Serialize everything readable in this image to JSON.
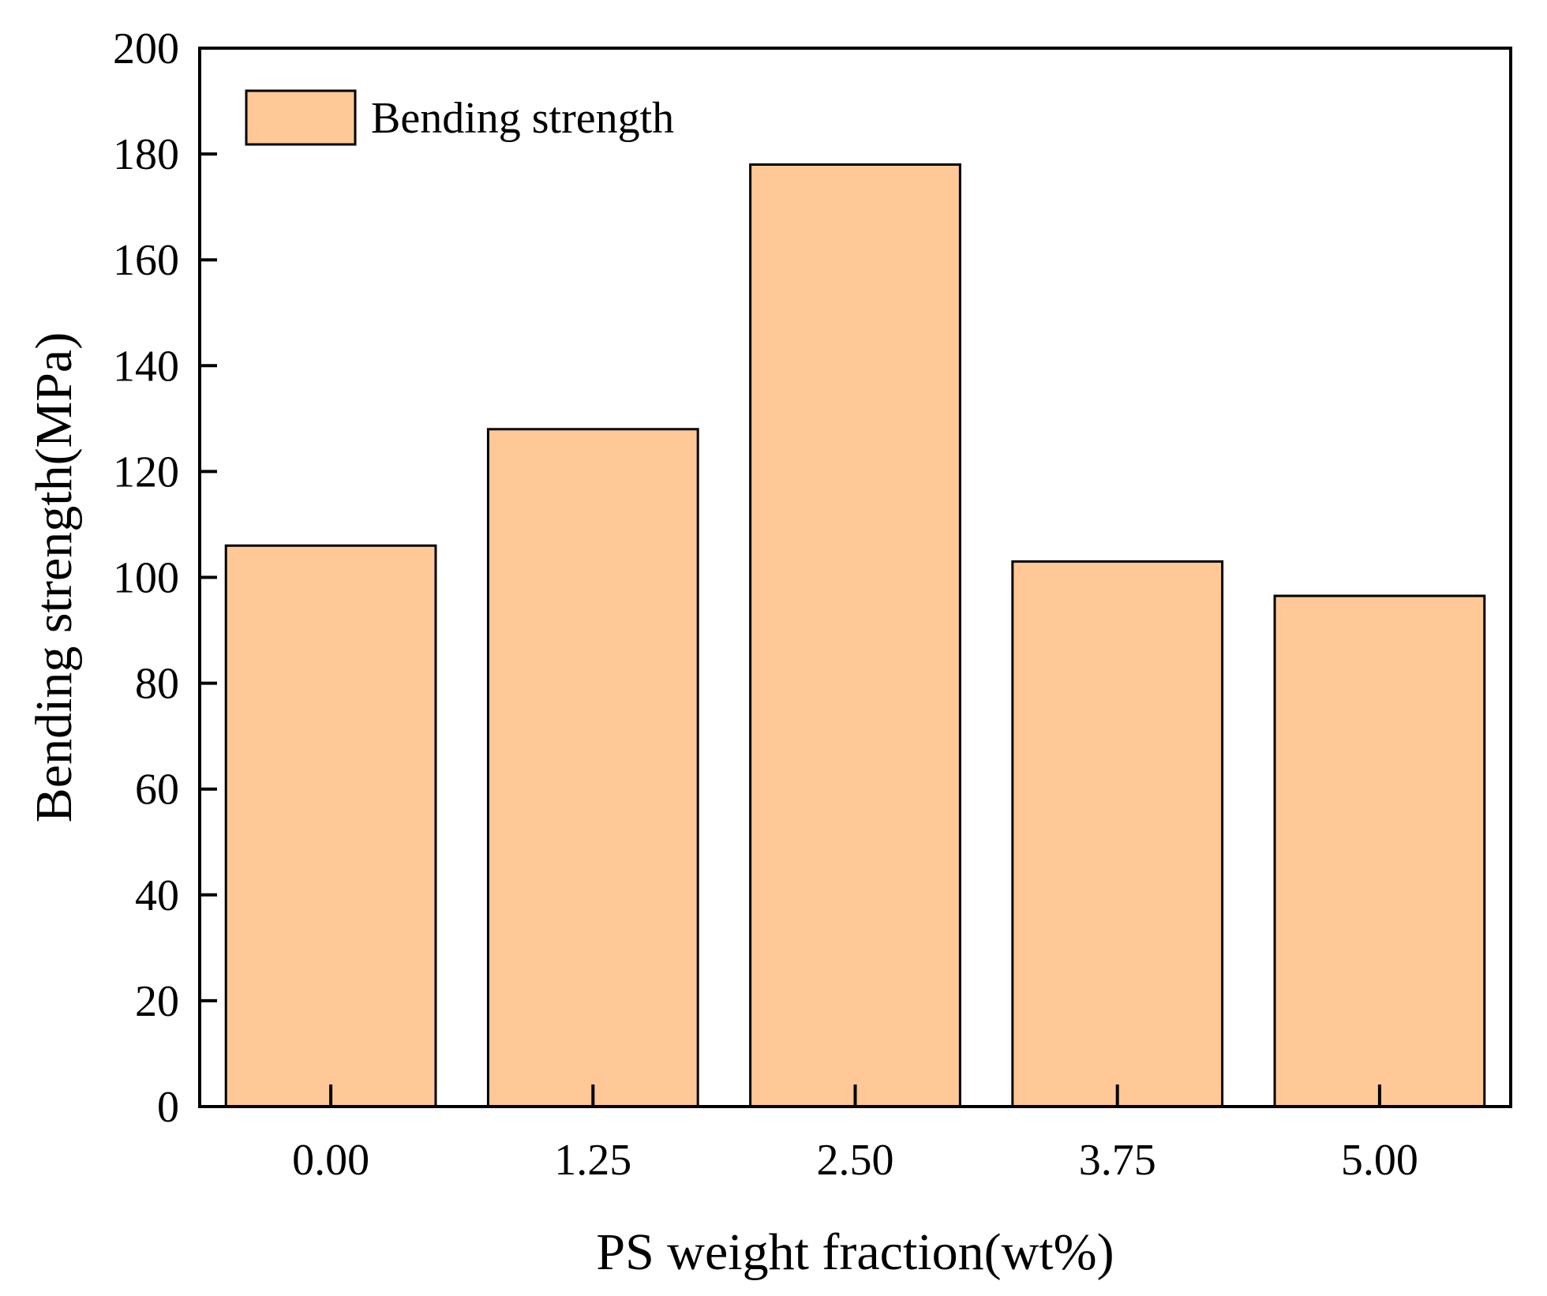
{
  "chart_data": {
    "type": "bar",
    "title": "",
    "xlabel": "PS weight fraction(wt%)",
    "ylabel": "Bending strength(MPa)",
    "categories": [
      "0.00",
      "1.25",
      "2.50",
      "3.75",
      "5.00"
    ],
    "series": [
      {
        "name": "Bending strength",
        "values": [
          106,
          128,
          178,
          103,
          96.5
        ],
        "color": "#FFC896"
      }
    ],
    "ylim": [
      0,
      200
    ],
    "yticks": [
      0,
      20,
      40,
      60,
      80,
      100,
      120,
      140,
      160,
      180,
      200
    ],
    "legend_position": "top-left",
    "grid": false
  }
}
